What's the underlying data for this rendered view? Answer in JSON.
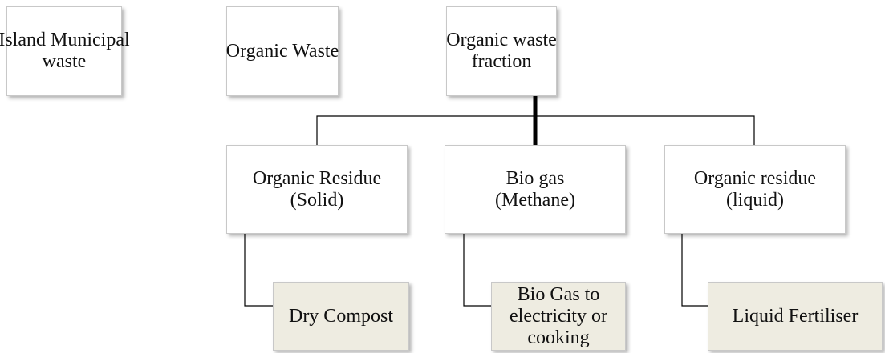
{
  "nodes": [
    {
      "lines": [
        "Island Municipal",
        "waste"
      ]
    },
    {
      "lines": [
        "Organic Waste"
      ]
    },
    {
      "lines": [
        "Organic waste",
        "fraction"
      ]
    },
    {
      "lines": [
        "Organic Residue",
        "(Solid)"
      ]
    },
    {
      "lines": [
        "Bio gas",
        "(Methane)"
      ]
    },
    {
      "lines": [
        "Organic residue",
        "(liquid)"
      ]
    },
    {
      "lines": [
        "Dry Compost"
      ]
    },
    {
      "lines": [
        "Bio Gas to",
        "electricity or",
        "cooking"
      ]
    },
    {
      "lines": [
        "Liquid Fertiliser"
      ]
    }
  ]
}
